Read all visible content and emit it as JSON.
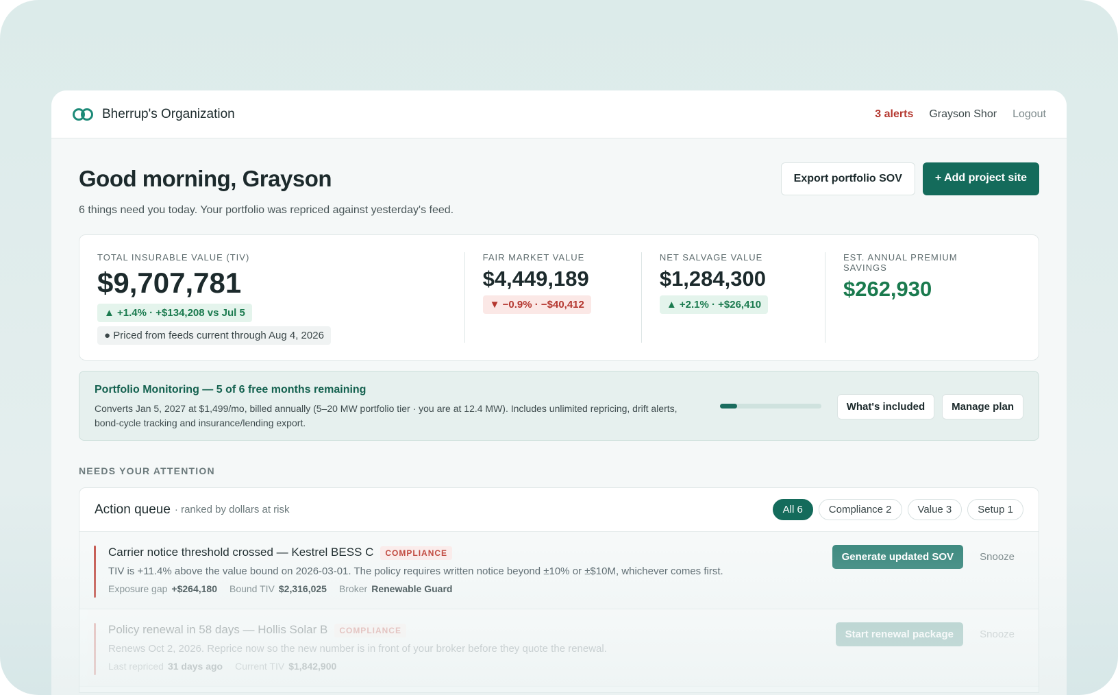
{
  "header": {
    "org": "Bherrup's Organization",
    "alerts": "3 alerts",
    "user": "Grayson Shor",
    "logout": "Logout"
  },
  "greeting": {
    "title": "Good morning, Grayson",
    "subtitle": "6 things need you today. Your portfolio was repriced against yesterday's feed.",
    "export_button": "Export portfolio SOV",
    "add_button": "+ Add project site"
  },
  "metrics": [
    {
      "label": "TOTAL INSURABLE VALUE (TIV)",
      "value": "$9,707,781",
      "change": "+1.4% · +$134,208 vs Jul 5",
      "note": "Priced from feeds current through Aug 4, 2026"
    },
    {
      "label": "FAIR MARKET VALUE",
      "value": "$4,449,189",
      "change": "−0.9% · −$40,412"
    },
    {
      "label": "NET SALVAGE VALUE",
      "value": "$1,284,300",
      "change": "+2.1% · +$26,410"
    },
    {
      "label": "EST. ANNUAL PREMIUM SAVINGS",
      "value": "$262,930"
    }
  ],
  "plan": {
    "title": "Portfolio Monitoring — 5 of 6 free months remaining",
    "description": "Converts Jan 5, 2027 at $1,499/mo, billed annually (5–20 MW portfolio tier · you are at 12.4 MW). Includes unlimited repricing, drift alerts, bond-cycle tracking and insurance/lending export.",
    "buttons": [
      "What's included",
      "Manage plan"
    ]
  },
  "section_label": "NEEDS YOUR ATTENTION",
  "queue": {
    "title": "Action queue",
    "subtitle": "· ranked by dollars at risk",
    "filters": [
      "All 6",
      "Compliance 2",
      "Value 3",
      "Setup 1"
    ],
    "items": [
      {
        "title": "Carrier notice threshold crossed — Kestrel BESS C",
        "tag": "COMPLIANCE",
        "description": "TIV is +11.4% above the value bound on 2026-03-01. The policy requires written notice beyond ±10% or ±$10M, whichever comes first.",
        "facts": [
          {
            "label": "Exposure gap",
            "value": "+$264,180"
          },
          {
            "label": "Bound TIV",
            "value": "$2,316,025"
          },
          {
            "label": "Broker",
            "value": "Renewable Guard"
          }
        ],
        "action": "Generate updated SOV",
        "snooze": "Snooze"
      },
      {
        "title": "Policy renewal in 58 days — Hollis Solar B",
        "tag": "COMPLIANCE",
        "description": "Renews Oct 2, 2026. Reprice now so the new number is in front of your broker before they quote the renewal.",
        "facts": [
          {
            "label": "Last repriced",
            "value": "31 days ago"
          },
          {
            "label": "Current TIV",
            "value": "$1,842,900"
          }
        ],
        "action": "Start renewal package",
        "snooze": "Snooze"
      }
    ]
  }
}
